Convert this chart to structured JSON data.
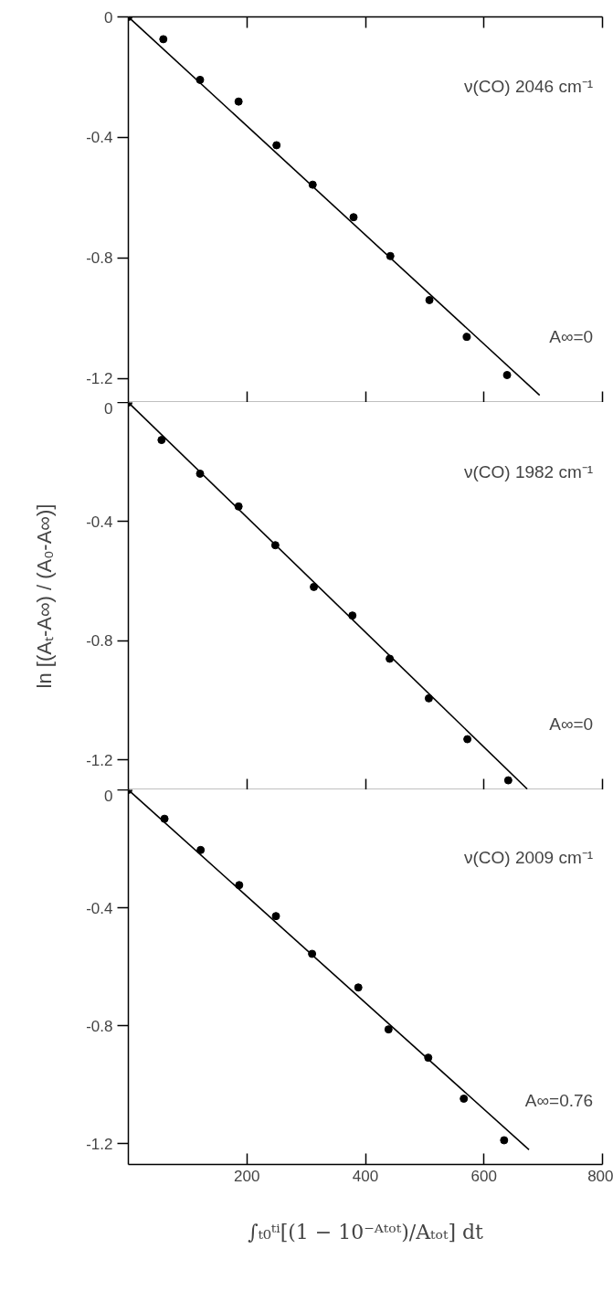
{
  "chart_data": [
    {
      "type": "scatter",
      "grid": false,
      "tick_labels": "y",
      "xlim": [
        0,
        800
      ],
      "xticks": [
        200,
        400,
        600,
        800
      ],
      "ylim": [
        -1.28,
        0
      ],
      "yticks": [
        0,
        -0.4,
        -0.8,
        -1.2
      ],
      "annotations": [
        "ν(CO) 2046 cm⁻¹",
        "A∞=0"
      ],
      "series": [
        {
          "color": "#000000",
          "marker": "circle",
          "x": [
            0,
            59,
            121,
            186,
            250,
            311,
            380,
            442,
            508,
            571,
            639
          ],
          "values": [
            0,
            -0.074,
            -0.209,
            -0.281,
            -0.426,
            -0.557,
            -0.665,
            -0.794,
            -0.94,
            -1.062,
            -1.189
          ]
        },
        {
          "type": "line",
          "color": "#000000",
          "x": [
            0,
            694
          ],
          "values": [
            0,
            -1.256
          ]
        }
      ]
    },
    {
      "type": "scatter",
      "grid": false,
      "tick_labels": "y",
      "ylabel": "ln [(Aₜ-A∞) / (A₀-A∞)]",
      "xlim": [
        0,
        800
      ],
      "xticks": [
        200,
        400,
        600,
        800
      ],
      "ylim": [
        -1.3,
        0
      ],
      "yticks": [
        0,
        -0.4,
        -0.8,
        -1.2
      ],
      "annotations": [
        "ν(CO) 1982 cm⁻¹",
        "A∞=0"
      ],
      "series": [
        {
          "color": "#000000",
          "marker": "circle",
          "x": [
            0,
            56,
            121,
            186,
            248,
            313,
            378,
            441,
            507,
            572,
            641
          ],
          "values": [
            0,
            -0.126,
            -0.239,
            -0.349,
            -0.479,
            -0.619,
            -0.715,
            -0.86,
            -0.993,
            -1.13,
            -1.268
          ]
        },
        {
          "type": "line",
          "color": "#000000",
          "x": [
            0,
            673
          ],
          "values": [
            0,
            -1.297
          ]
        }
      ]
    },
    {
      "type": "scatter",
      "grid": false,
      "xlabel": "∫ₜ₀ᵗⁱ[(1 − 10⁻ᴬᵗᵒᵗ)/Aₜₒₜ] dt",
      "xlim": [
        0,
        800
      ],
      "xticks": [
        200,
        400,
        600,
        800
      ],
      "ylim": [
        -1.27,
        0
      ],
      "yticks": [
        0,
        -0.4,
        -0.8,
        -1.2
      ],
      "annotations": [
        "ν(CO) 2009 cm⁻¹",
        "A∞=0.76"
      ],
      "series": [
        {
          "color": "#000000",
          "marker": "circle",
          "x": [
            0,
            61,
            122,
            187,
            249,
            310,
            388,
            439,
            506,
            566,
            634
          ],
          "values": [
            0,
            -0.098,
            -0.204,
            -0.323,
            -0.428,
            -0.556,
            -0.67,
            -0.812,
            -0.908,
            -1.047,
            -1.188
          ]
        },
        {
          "type": "line",
          "color": "#000000",
          "x": [
            0,
            676
          ],
          "values": [
            0,
            -1.22
          ]
        }
      ]
    }
  ]
}
